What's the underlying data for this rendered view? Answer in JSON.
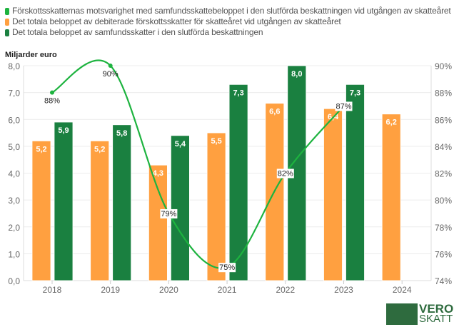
{
  "chart_data": {
    "type": "bar",
    "title": "",
    "ylabel": "Miljarder euro",
    "categories": [
      "2018",
      "2019",
      "2020",
      "2021",
      "2022",
      "2023",
      "2024"
    ],
    "ylim": [
      0,
      8
    ],
    "yticks": [
      "0,0",
      "1,0",
      "2,0",
      "3,0",
      "4,0",
      "5,0",
      "6,0",
      "7,0",
      "8,0"
    ],
    "y2lim": [
      74,
      90
    ],
    "y2ticks": [
      "74%",
      "76%",
      "78%",
      "80%",
      "82%",
      "84%",
      "86%",
      "88%",
      "90%"
    ],
    "grid": true,
    "legend_position": "top-left",
    "series": [
      {
        "name": "Förskottsskatternas motsvarighet med samfundsskattebeloppet i den slutförda beskattningen vid utgången av skatteåret",
        "type": "line",
        "axis": "right",
        "color": "#1db33f",
        "values": [
          88,
          90,
          79,
          75,
          82,
          87,
          null
        ],
        "labels": [
          "88%",
          "90%",
          "79%",
          "75%",
          "82%",
          "87%",
          ""
        ]
      },
      {
        "name": "Det totala beloppet av debiterade förskottsskatter för skatteåret vid utgången av skatteåret",
        "type": "bar",
        "color": "#ffa040",
        "values": [
          5.2,
          5.2,
          4.3,
          5.5,
          6.6,
          6.4,
          6.2
        ],
        "labels": [
          "5,2",
          "5,2",
          "4,3",
          "5,5",
          "6,6",
          "6,4",
          "6,2"
        ]
      },
      {
        "name": "Det totala beloppet av samfundsskatter i den slutförda beskattningen",
        "type": "bar",
        "color": "#1a8040",
        "values": [
          5.9,
          5.8,
          5.4,
          7.3,
          8.0,
          7.3,
          null
        ],
        "labels": [
          "5,9",
          "5,8",
          "5,4",
          "7,3",
          "8,0",
          "7,3",
          ""
        ]
      }
    ]
  },
  "logo": {
    "line1": "VERO",
    "line2": "SKATT"
  }
}
